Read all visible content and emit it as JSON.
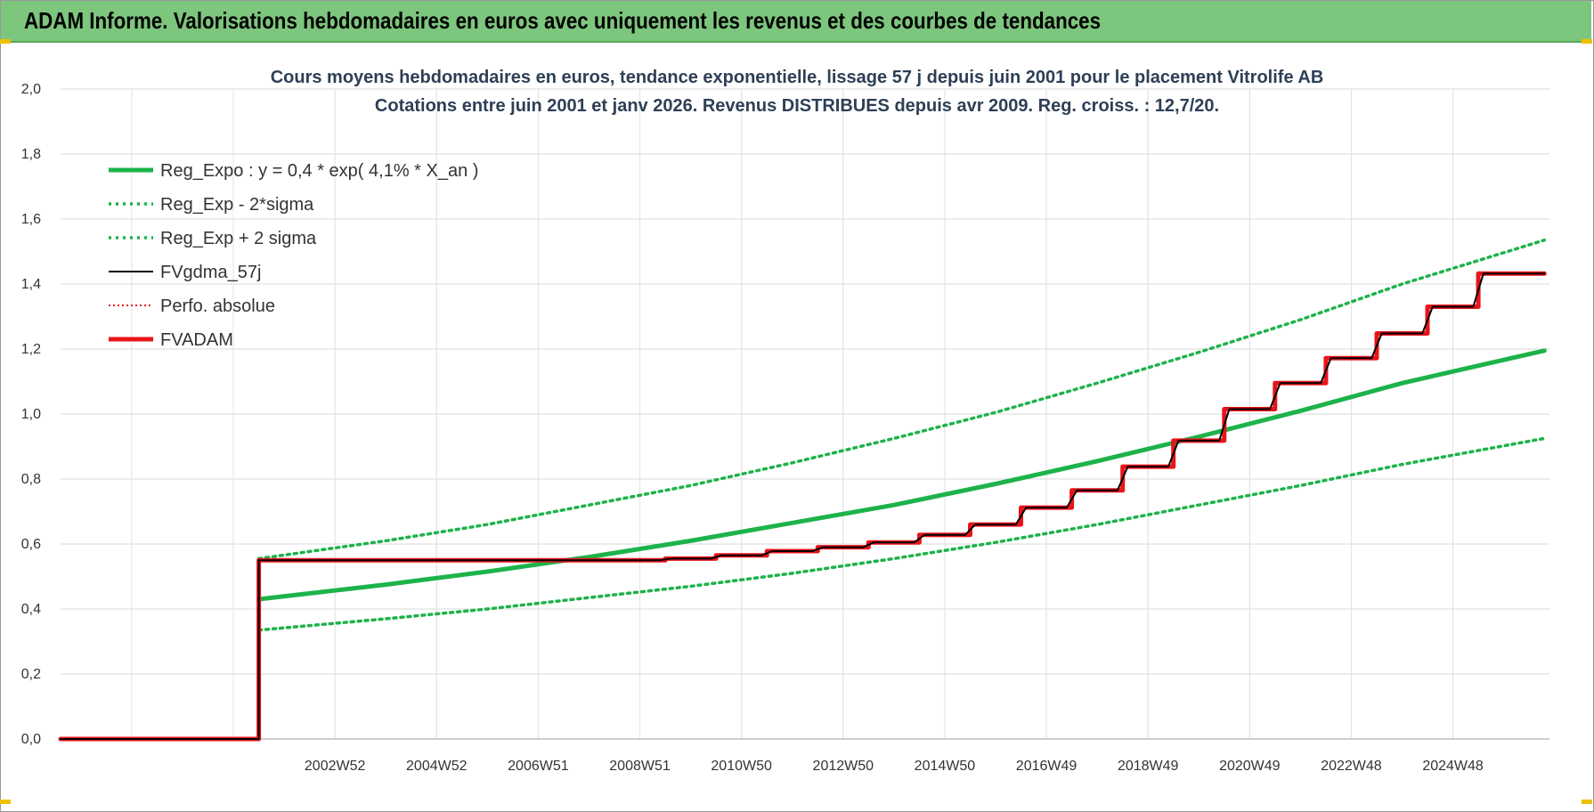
{
  "banner": {
    "title": "ADAM Informe. Valorisations hebdomadaires en euros avec uniquement les revenus et des courbes de tendances"
  },
  "colors": {
    "banner_bg": "#7dc67d",
    "trend_green": "#1db34a",
    "adam_red": "#e8141a",
    "fv_black": "#000000"
  },
  "chart_data": {
    "type": "line",
    "title": "Cours moyens hebdomadaires en euros, tendance exponentielle, lissage 57 j depuis juin 2001 pour le placement Vitrolife AB",
    "subtitle": "Cotations entre juin 2001 et janv 2026. Revenus DISTRIBUES depuis avr 2009. Reg. croiss. : 12,7/20.",
    "xlabel": "",
    "ylabel": "",
    "ylim": [
      0,
      2.0
    ],
    "yticks": [
      "0,0",
      "0,2",
      "0,4",
      "0,6",
      "0,8",
      "1,0",
      "1,2",
      "1,4",
      "1,6",
      "1,8",
      "2,0"
    ],
    "xlim": [
      1997.6,
      2026.9
    ],
    "xticks": [
      {
        "label": "2002W52",
        "x": 2003.0
      },
      {
        "label": "2004W52",
        "x": 2005.0
      },
      {
        "label": "2006W51",
        "x": 2007.0
      },
      {
        "label": "2008W51",
        "x": 2009.0
      },
      {
        "label": "2010W50",
        "x": 2011.0
      },
      {
        "label": "2012W50",
        "x": 2013.0
      },
      {
        "label": "2014W50",
        "x": 2015.0
      },
      {
        "label": "2016W49",
        "x": 2017.0
      },
      {
        "label": "2018W49",
        "x": 2019.0
      },
      {
        "label": "2020W49",
        "x": 2021.0
      },
      {
        "label": "2022W48",
        "x": 2023.0
      },
      {
        "label": "2024W48",
        "x": 2025.0
      }
    ],
    "grid": true,
    "legend_position": "top-left",
    "series": [
      {
        "name": "Reg_Expo : y = 0,4 * exp( 4,1% *  X_an )",
        "style": "solid-thick",
        "color": "#1db34a",
        "x": [
          2001.5,
          2004,
          2006,
          2008,
          2010,
          2012,
          2014,
          2016,
          2018,
          2020,
          2022,
          2024,
          2026.8
        ],
        "y": [
          0.43,
          0.475,
          0.515,
          0.56,
          0.61,
          0.665,
          0.72,
          0.785,
          0.855,
          0.93,
          1.01,
          1.095,
          1.195
        ]
      },
      {
        "name": "Reg_Exp - 2*sigma",
        "style": "dotted",
        "color": "#1db34a",
        "x": [
          2001.5,
          2004,
          2006,
          2008,
          2010,
          2012,
          2014,
          2016,
          2018,
          2020,
          2022,
          2024,
          2026.8
        ],
        "y": [
          0.335,
          0.37,
          0.4,
          0.435,
          0.47,
          0.51,
          0.555,
          0.605,
          0.66,
          0.72,
          0.78,
          0.845,
          0.925
        ]
      },
      {
        "name": "Reg_Exp + 2 sigma",
        "style": "dotted",
        "color": "#1db34a",
        "x": [
          2001.5,
          2004,
          2006,
          2008,
          2010,
          2012,
          2014,
          2016,
          2018,
          2020,
          2022,
          2024,
          2026.8
        ],
        "y": [
          0.555,
          0.61,
          0.66,
          0.72,
          0.78,
          0.85,
          0.925,
          1.005,
          1.095,
          1.19,
          1.29,
          1.4,
          1.535
        ]
      },
      {
        "name": "FVgdma_57j",
        "style": "solid-thin",
        "color": "#000000",
        "x": [
          1997.6,
          2001.5,
          2001.5,
          2009.4,
          2009.6,
          2010.4,
          2010.6,
          2011.4,
          2011.6,
          2012.4,
          2012.6,
          2013.4,
          2013.6,
          2014.4,
          2014.6,
          2015.4,
          2015.6,
          2016.4,
          2016.6,
          2017.4,
          2017.6,
          2018.4,
          2018.6,
          2019.4,
          2019.6,
          2020.4,
          2020.6,
          2021.4,
          2021.6,
          2022.4,
          2022.6,
          2023.4,
          2023.6,
          2024.4,
          2024.6,
          2025.4,
          2025.6,
          2026.8
        ],
        "y": [
          0.0,
          0.0,
          0.55,
          0.55,
          0.555,
          0.555,
          0.565,
          0.565,
          0.578,
          0.578,
          0.59,
          0.59,
          0.605,
          0.605,
          0.628,
          0.628,
          0.66,
          0.66,
          0.712,
          0.712,
          0.765,
          0.765,
          0.838,
          0.838,
          0.918,
          0.918,
          1.015,
          1.015,
          1.095,
          1.095,
          1.172,
          1.172,
          1.248,
          1.248,
          1.33,
          1.33,
          1.432,
          1.432
        ]
      },
      {
        "name": "Perfo. absolue",
        "style": "dotted-thin",
        "color": "#e8141a",
        "x": [],
        "y": []
      },
      {
        "name": "FVADAM",
        "style": "solid-thick",
        "color": "#e8141a",
        "x": [
          1997.6,
          2001.5,
          2001.5,
          2009.5,
          2009.5,
          2010.5,
          2010.5,
          2011.5,
          2011.5,
          2012.5,
          2012.5,
          2013.5,
          2013.5,
          2014.5,
          2014.5,
          2015.5,
          2015.5,
          2016.5,
          2016.5,
          2017.5,
          2017.5,
          2018.5,
          2018.5,
          2019.5,
          2019.5,
          2020.5,
          2020.5,
          2021.5,
          2021.5,
          2022.5,
          2022.5,
          2023.5,
          2023.5,
          2024.5,
          2024.5,
          2025.5,
          2025.5,
          2026.8
        ],
        "y": [
          0.0,
          0.0,
          0.55,
          0.55,
          0.555,
          0.555,
          0.565,
          0.565,
          0.578,
          0.578,
          0.59,
          0.59,
          0.605,
          0.605,
          0.628,
          0.628,
          0.66,
          0.66,
          0.712,
          0.712,
          0.765,
          0.765,
          0.838,
          0.838,
          0.918,
          0.918,
          1.015,
          1.015,
          1.095,
          1.095,
          1.172,
          1.172,
          1.248,
          1.248,
          1.33,
          1.33,
          1.432,
          1.432
        ]
      }
    ]
  }
}
